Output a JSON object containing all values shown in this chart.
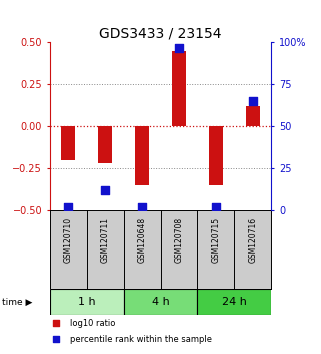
{
  "title": "GDS3433 / 23154",
  "samples": [
    "GSM120710",
    "GSM120711",
    "GSM120648",
    "GSM120708",
    "GSM120715",
    "GSM120716"
  ],
  "log10_ratio": [
    -0.2,
    -0.22,
    -0.35,
    0.45,
    -0.35,
    0.12
  ],
  "percentile_rank": [
    2,
    12,
    2,
    97,
    2,
    65
  ],
  "time_groups": [
    {
      "label": "1 h",
      "indices": [
        0,
        1
      ],
      "color": "#bbefbb"
    },
    {
      "label": "4 h",
      "indices": [
        2,
        3
      ],
      "color": "#77dd77"
    },
    {
      "label": "24 h",
      "indices": [
        4,
        5
      ],
      "color": "#44cc44"
    }
  ],
  "ylim_left": [
    -0.5,
    0.5
  ],
  "ylim_right": [
    0,
    100
  ],
  "yticks_left": [
    -0.5,
    -0.25,
    0,
    0.25,
    0.5
  ],
  "yticks_right": [
    0,
    25,
    50,
    75,
    100
  ],
  "ytick_labels_right": [
    "0",
    "25",
    "50",
    "75",
    "100%"
  ],
  "bar_color": "#cc1111",
  "square_color": "#1111cc",
  "zero_line_color": "#cc1111",
  "grid_color": "#888888",
  "left_axis_color": "#cc1111",
  "right_axis_color": "#1111cc",
  "bg_color": "#ffffff",
  "sample_box_color": "#cccccc",
  "title_fontsize": 10,
  "tick_fontsize": 7,
  "sample_fontsize": 5.5,
  "legend_fontsize": 6,
  "time_fontsize": 8
}
